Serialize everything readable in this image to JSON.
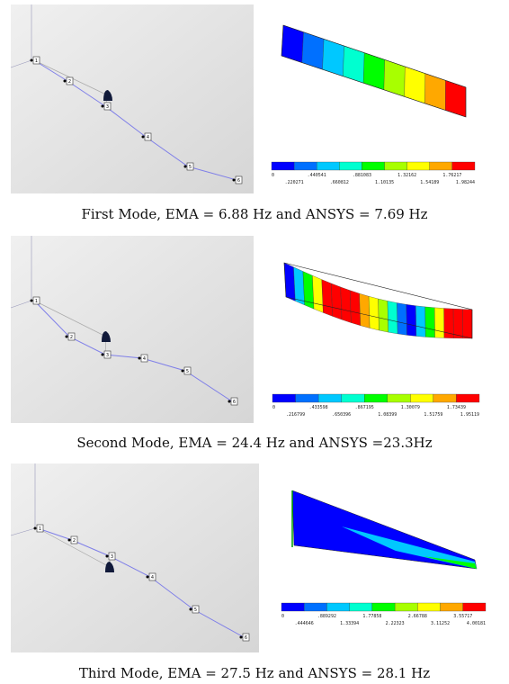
{
  "panels": [
    {
      "caption": "First Mode, EMA = 6.88 Hz and ANSYS = 7.69 Hz",
      "nodes": [
        "1",
        "2",
        "3",
        "4",
        "5",
        "6"
      ],
      "top_labels": [
        "0",
        ".440541",
        ".881083",
        "1.32162",
        "1.76217"
      ],
      "bottom_labels": [
        ".220271",
        ".660812",
        "1.10135",
        "1.54189",
        "1.98244"
      ]
    },
    {
      "caption": "Second Mode, EMA = 24.4 Hz and ANSYS =23.3Hz",
      "nodes": [
        "1",
        "2",
        "3",
        "4",
        "5",
        "6"
      ],
      "top_labels": [
        "0",
        ".433598",
        ".867195",
        "1.30079",
        "1.73439"
      ],
      "bottom_labels": [
        ".216799",
        ".650396",
        "1.08399",
        "1.51759",
        "1.95119"
      ]
    },
    {
      "caption": "Third Mode, EMA = 27.5 Hz and ANSYS = 28.1 Hz",
      "nodes": [
        "1",
        "2",
        "3",
        "4",
        "5",
        "6"
      ],
      "top_labels": [
        "0",
        ".889292",
        "1.77858",
        "2.66788",
        "3.55717"
      ],
      "bottom_labels": [
        ".444646",
        "1.33394",
        "2.22323",
        "3.11252",
        "4.00181"
      ]
    }
  ]
}
